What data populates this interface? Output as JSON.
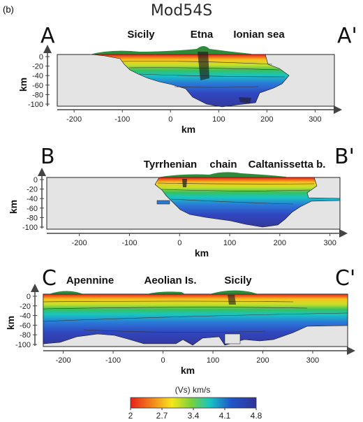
{
  "figure": {
    "panel_tag": "(b)",
    "title": "Mod54S"
  },
  "chart_data": [
    {
      "type": "heatmap",
      "section_start": "A",
      "section_end": "A'",
      "place_labels": [
        "Sicily",
        "Etna",
        "Ionian sea"
      ],
      "xlabel": "km",
      "ylabel": "km",
      "xticks": [
        -200,
        -100,
        0,
        100,
        200,
        300
      ],
      "yticks": [
        0,
        -20,
        -40,
        -60,
        -80,
        -100
      ],
      "xlim": [
        -235,
        340
      ],
      "ylim": [
        -103,
        8
      ]
    },
    {
      "type": "heatmap",
      "section_start": "B",
      "section_end": "B'",
      "place_labels": [
        "Tyrrhenian",
        "chain",
        "Caltanissetta b."
      ],
      "xlabel": "km",
      "ylabel": "km",
      "xticks": [
        -200,
        -100,
        0,
        100,
        200,
        300
      ],
      "yticks": [
        0,
        -20,
        -40,
        -60,
        -80,
        -100
      ],
      "xlim": [
        -265,
        320
      ],
      "ylim": [
        -103,
        8
      ]
    },
    {
      "type": "heatmap",
      "section_start": "C",
      "section_end": "C'",
      "place_labels": [
        "Apennine",
        "Aeolian Is.",
        "Sicily"
      ],
      "xlabel": "km",
      "ylabel": "km",
      "xticks": [
        -200,
        -100,
        0,
        100,
        200,
        300
      ],
      "yticks": [
        0,
        -20,
        -40,
        -60,
        -80,
        -100
      ],
      "xlim": [
        -240,
        370
      ],
      "ylim": [
        -103,
        8
      ]
    }
  ],
  "colorbar": {
    "title": "(Vs) km/s",
    "ticks": [
      "2",
      "2.7",
      "3.4",
      "4.1",
      "4.8"
    ],
    "colors": [
      "#e8201a",
      "#f6e61d",
      "#18c5c0",
      "#1f56c8",
      "#333399"
    ]
  },
  "colors": {
    "no_data": "#e4e4e4",
    "topography": "#2f8a3a"
  }
}
